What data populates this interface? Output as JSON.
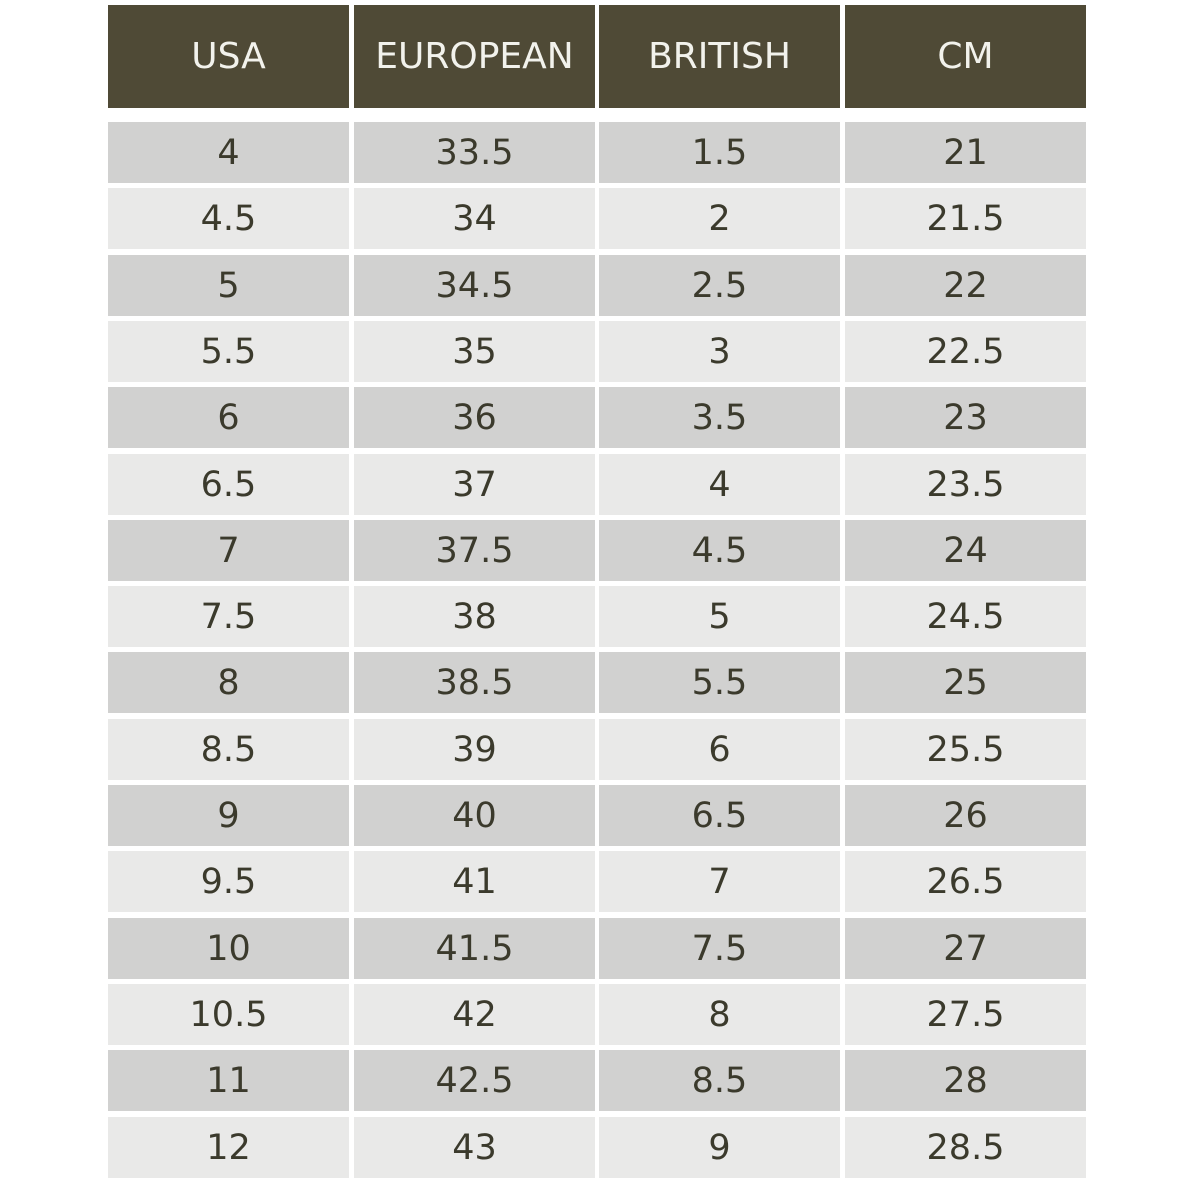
{
  "table": {
    "header": [
      "USA",
      "EUROPEAN",
      "BRITISH",
      "CM"
    ],
    "rows": [
      [
        "4",
        "33.5",
        "1.5",
        "21"
      ],
      [
        "4.5",
        "34",
        "2",
        "21.5"
      ],
      [
        "5",
        "34.5",
        "2.5",
        "22"
      ],
      [
        "5.5",
        "35",
        "3",
        "22.5"
      ],
      [
        "6",
        "36",
        "3.5",
        "23"
      ],
      [
        "6.5",
        "37",
        "4",
        "23.5"
      ],
      [
        "7",
        "37.5",
        "4.5",
        "24"
      ],
      [
        "7.5",
        "38",
        "5",
        "24.5"
      ],
      [
        "8",
        "38.5",
        "5.5",
        "25"
      ],
      [
        "8.5",
        "39",
        "6",
        "25.5"
      ],
      [
        "9",
        "40",
        "6.5",
        "26"
      ],
      [
        "9.5",
        "41",
        "7",
        "26.5"
      ],
      [
        "10",
        "41.5",
        "7.5",
        "27"
      ],
      [
        "10.5",
        "42",
        "8",
        "27.5"
      ],
      [
        "11",
        "42.5",
        "8.5",
        "28"
      ],
      [
        "12",
        "43",
        "9",
        "28.5"
      ]
    ]
  }
}
